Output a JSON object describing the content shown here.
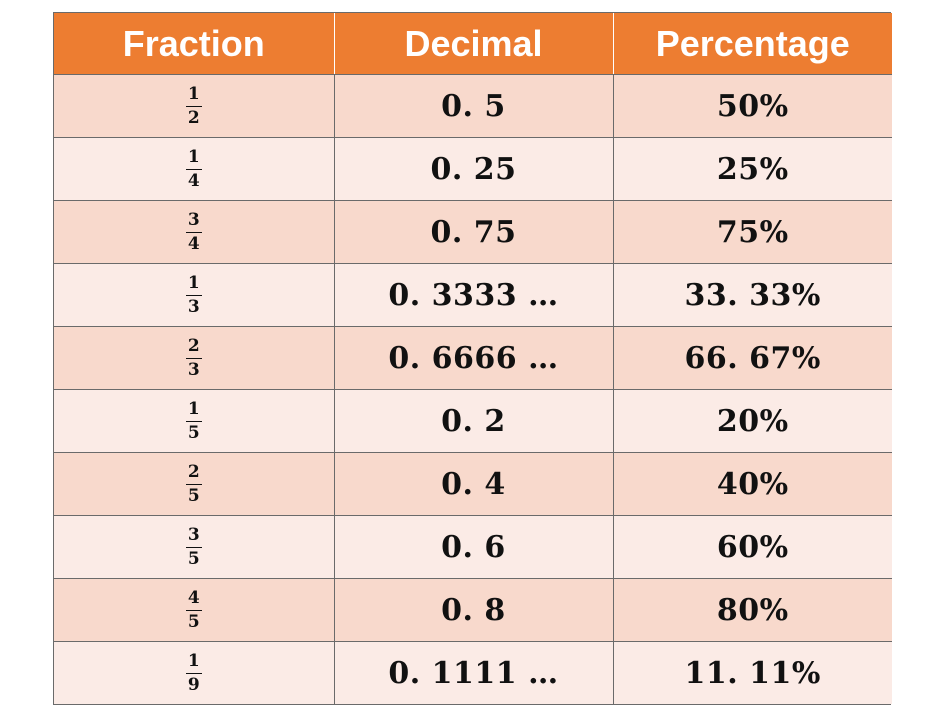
{
  "headers": [
    "Fraction",
    "Decimal",
    "Percentage"
  ],
  "rows": [
    {
      "numerator": "1",
      "denominator": "2",
      "decimal": "0. 5",
      "percentage": "50%"
    },
    {
      "numerator": "1",
      "denominator": "4",
      "decimal": "0. 25",
      "percentage": "25%"
    },
    {
      "numerator": "3",
      "denominator": "4",
      "decimal": "0. 75",
      "percentage": "75%"
    },
    {
      "numerator": "1",
      "denominator": "3",
      "decimal": "0. 3333 …",
      "percentage": "33. 33%"
    },
    {
      "numerator": "2",
      "denominator": "3",
      "decimal": "0. 6666 …",
      "percentage": "66. 67%"
    },
    {
      "numerator": "1",
      "denominator": "5",
      "decimal": "0. 2",
      "percentage": "20%"
    },
    {
      "numerator": "2",
      "denominator": "5",
      "decimal": "0. 4",
      "percentage": "40%"
    },
    {
      "numerator": "3",
      "denominator": "5",
      "decimal": "0. 6",
      "percentage": "60%"
    },
    {
      "numerator": "4",
      "denominator": "5",
      "decimal": "0. 8",
      "percentage": "80%"
    },
    {
      "numerator": "1",
      "denominator": "9",
      "decimal": "0. 1111 …",
      "percentage": "11. 11%"
    }
  ],
  "colors": {
    "header_bg": "#ed7d31",
    "header_text": "#ffffff",
    "row_odd": "#f8d9cc",
    "row_even": "#fbebe6",
    "border": "#6a6a6a"
  }
}
